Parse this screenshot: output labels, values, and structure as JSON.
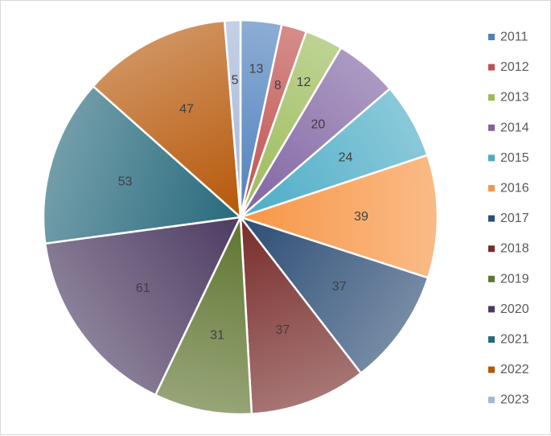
{
  "chart_data": {
    "type": "pie",
    "title": "",
    "categories": [
      "2011",
      "2012",
      "2013",
      "2014",
      "2015",
      "2016",
      "2017",
      "2018",
      "2019",
      "2020",
      "2021",
      "2022",
      "2023"
    ],
    "values": [
      13,
      8,
      12,
      20,
      24,
      39,
      37,
      37,
      31,
      61,
      53,
      47,
      5
    ],
    "colors": [
      "#4f81bd",
      "#c0504d",
      "#9bbb59",
      "#8064a2",
      "#4bacc6",
      "#f79646",
      "#2c4d75",
      "#772c2a",
      "#5f7530",
      "#4d3b62",
      "#276a7c",
      "#b65708",
      "#a5b6d8"
    ],
    "legend_position": "right",
    "data_labels": true
  }
}
